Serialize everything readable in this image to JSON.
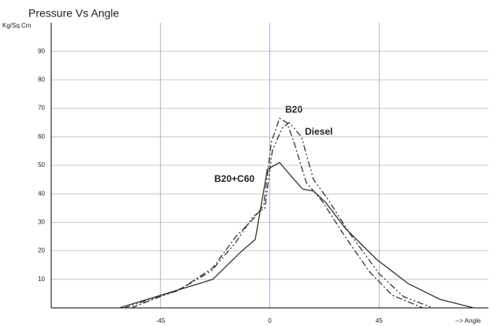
{
  "chart_data": {
    "type": "line",
    "title": "Pressure Vs Angle",
    "y_label": "Kg/Sq.Cm",
    "x_label": "--> Angle",
    "xlim": [
      -90,
      90
    ],
    "xticks": [
      -45,
      0,
      45
    ],
    "ylim": [
      0,
      100
    ],
    "yticks": [
      10,
      20,
      30,
      40,
      50,
      60,
      70,
      80,
      90
    ],
    "grid": true,
    "series": [
      {
        "name": "B20",
        "color": "#333333",
        "style": "dashdot",
        "x": [
          -57,
          -36,
          -23.5,
          -14,
          -7,
          -2.5,
          0.6,
          4,
          7,
          10,
          15,
          21.5,
          31,
          41,
          50.5,
          63
        ],
        "values": [
          0,
          7,
          14,
          25,
          31,
          36,
          58,
          66.5,
          65,
          58,
          44,
          37.5,
          25,
          12.7,
          4.4,
          0
        ]
      },
      {
        "name": "Diesel",
        "color": "#333333",
        "style": "dashdotdot",
        "x": [
          -60,
          -38,
          -24,
          -14,
          -7,
          -2,
          1,
          5,
          8,
          13,
          18,
          24,
          33,
          45,
          55,
          67
        ],
        "values": [
          0,
          6,
          13,
          23,
          32,
          35,
          55,
          63,
          65,
          60,
          45,
          38,
          26,
          12,
          4,
          0
        ]
      },
      {
        "name": "B20+C60",
        "color": "#333333",
        "style": "solid",
        "x": [
          -62,
          -23.5,
          -12,
          -6,
          -1,
          4,
          9,
          13.5,
          18,
          23,
          31,
          44,
          57,
          70,
          84
        ],
        "values": [
          0,
          10,
          19.6,
          24,
          48.6,
          51,
          46,
          41.7,
          41,
          37,
          28,
          17,
          8.5,
          3,
          0
        ]
      }
    ]
  }
}
